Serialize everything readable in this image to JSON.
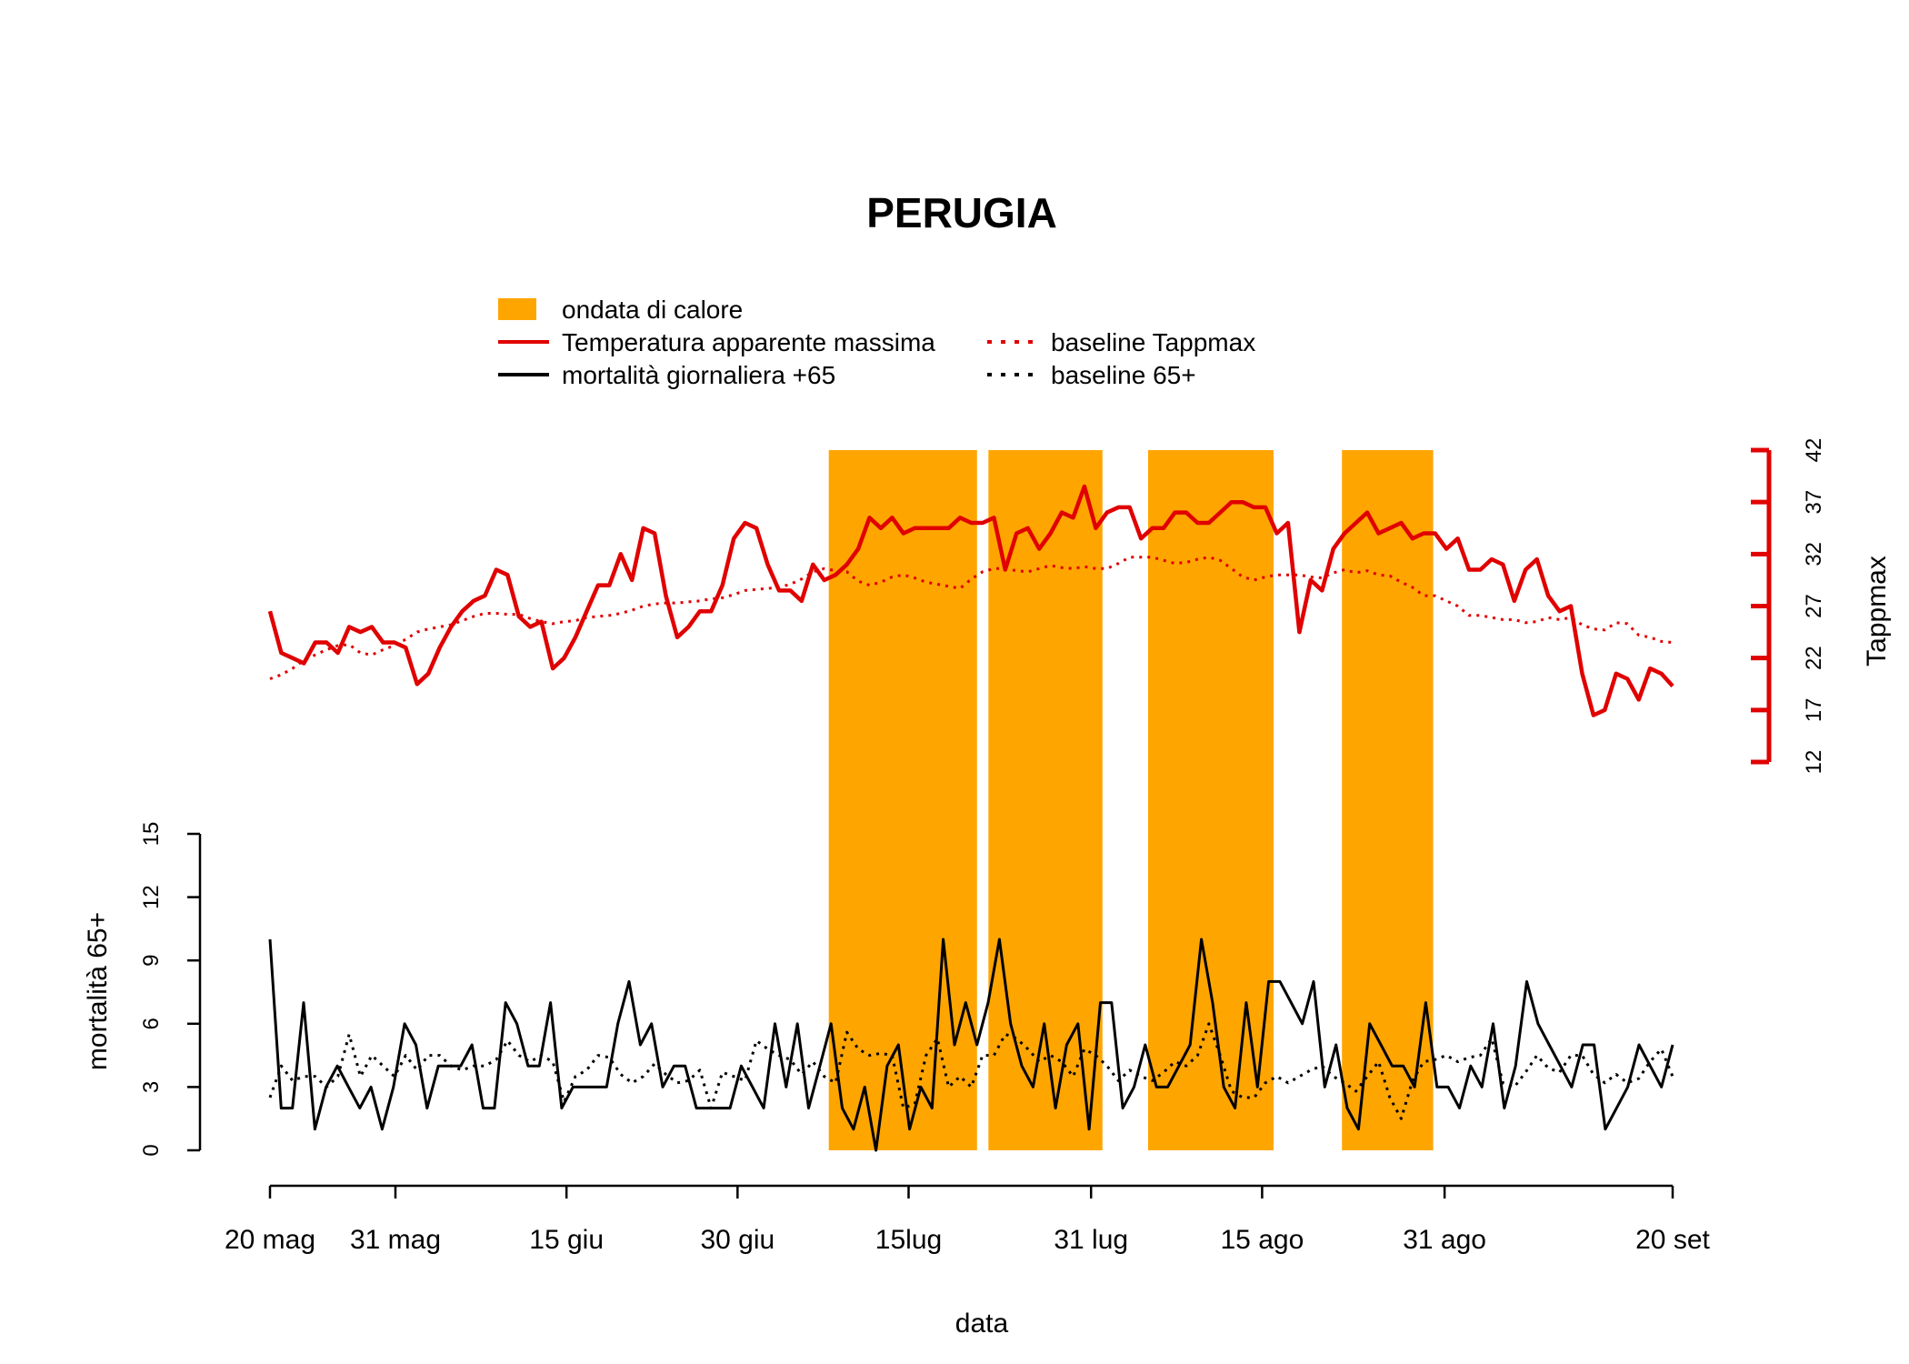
{
  "chart_data": {
    "type": "line",
    "title": "PERUGIA",
    "xlabel": "data",
    "ylabel_left": "mortalità 65+",
    "ylabel_right": "Tappmax",
    "x_start": "2023-05-20",
    "x_end": "2023-09-20",
    "x_ticks": [
      {
        "date": "2023-05-20",
        "label": "20 mag"
      },
      {
        "date": "2023-05-31",
        "label": "31 mag"
      },
      {
        "date": "2023-06-15",
        "label": "15 giu"
      },
      {
        "date": "2023-06-30",
        "label": "30 giu"
      },
      {
        "date": "2023-07-15",
        "label": "15lug"
      },
      {
        "date": "2023-07-31",
        "label": "31 lug"
      },
      {
        "date": "2023-08-15",
        "label": "15 ago"
      },
      {
        "date": "2023-08-31",
        "label": "31 ago"
      },
      {
        "date": "2023-09-20",
        "label": "20 set"
      }
    ],
    "y_left": {
      "lim": [
        0,
        15
      ],
      "ticks": [
        "0",
        "3",
        "6",
        "9",
        "12",
        "15"
      ]
    },
    "y_right": {
      "lim": [
        12,
        42
      ],
      "ticks": [
        "12",
        "17",
        "22",
        "27",
        "32",
        "37",
        "42"
      ]
    },
    "heatwaves": [
      {
        "start": "2023-07-08",
        "end": "2023-07-21"
      },
      {
        "start": "2023-07-22",
        "end": "2023-08-01"
      },
      {
        "start": "2023-08-05",
        "end": "2023-08-16"
      },
      {
        "start": "2023-08-22",
        "end": "2023-08-30"
      }
    ],
    "legend": [
      {
        "label": "ondata di calore",
        "kind": "box",
        "color": "#FFA500"
      },
      {
        "label": "Temperatura apparente massima",
        "kind": "solid",
        "color": "#E00000"
      },
      {
        "label": "mortalità giornaliera +65",
        "kind": "solid",
        "color": "#000000"
      },
      {
        "label": "baseline Tappmax",
        "kind": "dotted",
        "color": "#E00000"
      },
      {
        "label": "baseline 65+",
        "kind": "dotted",
        "color": "#000000"
      }
    ],
    "series": [
      {
        "name": "Temperatura apparente massima",
        "axis": "right",
        "color": "#E00000",
        "style": "solid",
        "values": [
          26.5,
          22.5,
          22,
          21.5,
          23.5,
          23.5,
          22.5,
          25,
          24.5,
          25,
          23.5,
          23.5,
          23,
          19.5,
          20.5,
          23,
          25,
          26.5,
          27.5,
          28,
          30.5,
          30,
          26,
          25,
          25.5,
          21,
          22,
          24,
          26.5,
          29,
          29,
          32,
          29.5,
          34.5,
          34,
          28,
          24,
          25,
          26.5,
          26.5,
          29,
          33.5,
          35,
          34.5,
          31,
          28.5,
          28.5,
          27.5,
          31,
          29.5,
          30,
          31,
          32.5,
          35.5,
          34.5,
          35.5,
          34,
          34.5,
          34.5,
          34.5,
          34.5,
          35.5,
          35,
          35,
          35.5,
          30.5,
          34,
          34.5,
          32.5,
          34,
          36,
          35.5,
          38.5,
          34.5,
          36,
          36.5,
          36.5,
          33.5,
          34.5,
          34.5,
          36,
          36,
          35,
          35,
          36,
          37,
          37,
          36.5,
          36.5,
          34,
          35,
          24.5,
          29.5,
          28.5,
          32.5,
          34,
          35,
          36,
          34,
          34.5,
          35,
          33.5,
          34,
          34,
          32.5,
          33.5,
          30.5,
          30.5,
          31.5,
          31,
          27.5,
          30.5,
          31.5,
          28,
          26.5,
          27,
          20.5,
          16.5,
          17,
          20.5,
          20,
          18,
          21,
          20.5,
          19.3
        ]
      },
      {
        "name": "baseline Tappmax",
        "axis": "right",
        "color": "#E00000",
        "style": "dotted",
        "values": [
          20,
          20.4,
          21,
          21.8,
          22.3,
          22.8,
          23.2,
          23.3,
          22.5,
          22.3,
          22.8,
          23.2,
          23.8,
          24.5,
          24.8,
          25,
          25.2,
          25.6,
          26,
          26.3,
          26.3,
          26.2,
          26.2,
          25.8,
          25.5,
          25.3,
          25.5,
          25.6,
          25.9,
          26,
          26.1,
          26.3,
          26.6,
          27,
          27.2,
          27.3,
          27.3,
          27.4,
          27.5,
          27.7,
          27.8,
          28.1,
          28.5,
          28.6,
          28.7,
          28.8,
          29.1,
          29.6,
          30.3,
          30.6,
          30.4,
          30.3,
          29.4,
          29,
          29.3,
          29.8,
          30,
          29.7,
          29.3,
          29.1,
          28.9,
          28.7,
          29.6,
          30.3,
          30.6,
          30.6,
          30.4,
          30.3,
          30.6,
          30.9,
          30.7,
          30.6,
          30.8,
          30.6,
          30.6,
          31.1,
          31.7,
          31.7,
          31.7,
          31.4,
          31.1,
          31.2,
          31.5,
          31.7,
          31.4,
          30.6,
          29.8,
          29.5,
          29.8,
          30,
          30,
          30,
          29.8,
          29.7,
          30.2,
          30.5,
          30.2,
          30.4,
          30,
          29.9,
          29.3,
          28.8,
          28,
          28,
          27.5,
          27,
          26.1,
          26.1,
          25.9,
          25.7,
          25.7,
          25.4,
          25.5,
          25.9,
          25.7,
          25.9,
          25.2,
          24.8,
          24.7,
          25.4,
          25.3,
          24.2,
          24,
          23.6,
          23.5
        ]
      },
      {
        "name": "mortalità giornaliera +65",
        "axis": "left",
        "color": "#000000",
        "style": "solid",
        "values": [
          10,
          2,
          2,
          7,
          1,
          3,
          4,
          3,
          2,
          3,
          1,
          3,
          6,
          5,
          2,
          4,
          4,
          4,
          5,
          2,
          2,
          7,
          6,
          4,
          4,
          7,
          2,
          3,
          3,
          3,
          3,
          6,
          8,
          5,
          6,
          3,
          4,
          4,
          2,
          2,
          2,
          2,
          4,
          3,
          2,
          6,
          3,
          6,
          2,
          4,
          6,
          2,
          1,
          3,
          0,
          4,
          5,
          1,
          3,
          2,
          10,
          5,
          7,
          5,
          7,
          10,
          6,
          4,
          3,
          6,
          2,
          5,
          6,
          1,
          7,
          7,
          2,
          3,
          5,
          3,
          3,
          4,
          5,
          10,
          7,
          3,
          2,
          7,
          3,
          8,
          8,
          7,
          6,
          8,
          3,
          5,
          2,
          1,
          6,
          5,
          4,
          4,
          3,
          7,
          3,
          3,
          2,
          4,
          3,
          6,
          2,
          4,
          8,
          6,
          5,
          4,
          3,
          5,
          5,
          1,
          2,
          3,
          5,
          4,
          3,
          5
        ]
      },
      {
        "name": "baseline 65+",
        "axis": "left",
        "color": "#000000",
        "style": "dotted",
        "values": [
          2.5,
          4,
          3.3,
          3.5,
          3.5,
          3,
          3.5,
          5.5,
          3.5,
          4.5,
          4,
          3.5,
          4.5,
          3.8,
          4.5,
          4.5,
          4,
          3.8,
          4,
          4,
          4.3,
          5.2,
          4.5,
          4.2,
          4.5,
          4.2,
          2.3,
          3.5,
          3.8,
          4.5,
          4.4,
          3.6,
          3.2,
          3.5,
          4.1,
          3.6,
          3.2,
          3.3,
          3.8,
          2,
          3.7,
          3.5,
          3.3,
          5.2,
          4.8,
          4.5,
          4.3,
          3.6,
          4.2,
          3.5,
          3.2,
          5.6,
          4.8,
          4.5,
          4.6,
          4.5,
          2,
          2.2,
          4.5,
          5.3,
          3,
          3.5,
          3,
          4.5,
          4.5,
          5.5,
          5.3,
          4.8,
          4.2,
          4.5,
          4.2,
          3.5,
          4.8,
          4.5,
          4,
          3.3,
          3.8,
          3.5,
          3.3,
          3.7,
          4.2,
          4,
          4.5,
          6,
          4.5,
          2.8,
          2.5,
          2.5,
          3.2,
          3.5,
          3.2,
          3.5,
          3.8,
          4,
          3.5,
          3.2,
          2.8,
          3.5,
          4.2,
          2.5,
          1.5,
          3.3,
          4.2,
          4.3,
          4.5,
          4.2,
          4.4,
          4.5,
          5.3,
          3.2,
          3,
          3.7,
          4.5,
          3.9,
          3.7,
          4.5,
          4.5,
          3.6,
          3.2,
          3.6,
          3.2,
          3.4,
          4.2,
          4.8,
          3.5
        ]
      }
    ]
  }
}
